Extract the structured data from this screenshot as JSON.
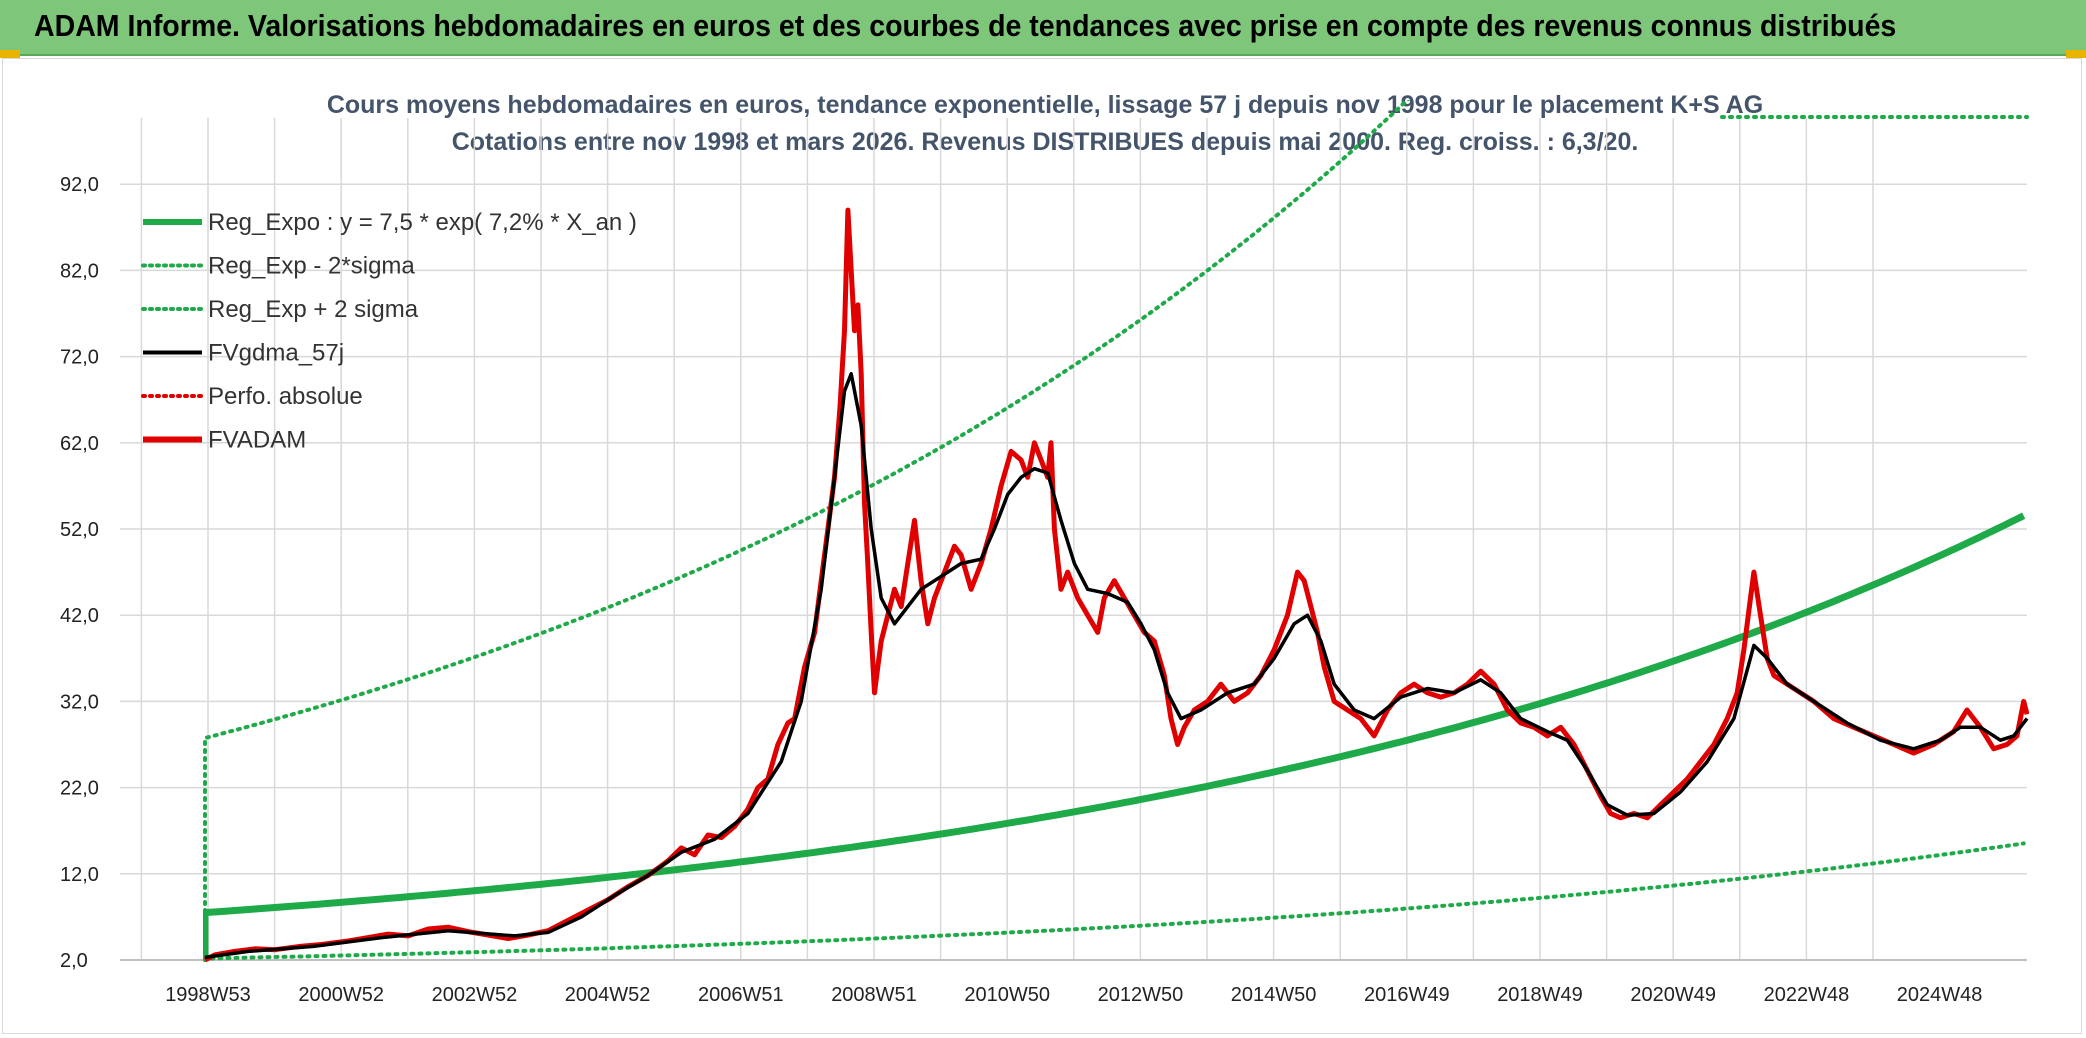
{
  "header": {
    "title": "ADAM Informe. Valorisations hebdomadaires en euros et des courbes de tendances avec prise en compte des revenus connus distribués"
  },
  "chart_data": {
    "type": "line",
    "title": "Cours moyens hebdomadaires en euros, tendance exponentielle, lissage 57 j depuis nov 1998 pour le placement K+S AG",
    "subtitle": "Cotations entre nov 1998 et mars 2026. Revenus DISTRIBUES depuis mai 2000. Reg. croiss. : 6,3/20.",
    "xlabel": "",
    "ylabel": "",
    "x_range_years": [
      1998.85,
      2026.2
    ],
    "ylim": [
      2,
      98
    ],
    "yticks": [
      "2,0",
      "12,0",
      "22,0",
      "32,0",
      "42,0",
      "52,0",
      "62,0",
      "72,0",
      "82,0",
      "92,0"
    ],
    "xticks": [
      "1998W53",
      "2000W52",
      "2002W52",
      "2004W52",
      "2006W51",
      "2008W51",
      "2010W50",
      "2012W50",
      "2014W50",
      "2016W49",
      "2018W49",
      "2020W49",
      "2022W48",
      "2024W48"
    ],
    "grid": true,
    "legend_position": "top-left",
    "legend": [
      {
        "label": "Reg_Expo : y = 7,5 * exp( 7,2% *  X_an )",
        "color": "#1faa4a",
        "style": "solid-thick"
      },
      {
        "label": "Reg_Exp - 2*sigma",
        "color": "#1faa4a",
        "style": "dotted"
      },
      {
        "label": "Reg_Exp + 2 sigma",
        "color": "#1faa4a",
        "style": "dotted"
      },
      {
        "label": "FVgdma_57j",
        "color": "#000000",
        "style": "solid"
      },
      {
        "label": "Perfo. absolue",
        "color": "#e00000",
        "style": "dotted"
      },
      {
        "label": "FVADAM",
        "color": "#e00000",
        "style": "solid-thick"
      }
    ],
    "regression": {
      "a": 7.5,
      "rate": 0.072,
      "t0": 1998.85,
      "t_end": 2026.2,
      "lower_factor": 0.29,
      "upper_factor": 3.7,
      "lower_start": 2.0,
      "upper_start": 27.5
    },
    "series": [
      {
        "name": "FVADAM",
        "color": "#e00000",
        "points": [
          [
            1998.85,
            2.0
          ],
          [
            1999.0,
            2.6
          ],
          [
            1999.3,
            3.0
          ],
          [
            1999.6,
            3.3
          ],
          [
            1999.9,
            3.2
          ],
          [
            2000.3,
            3.6
          ],
          [
            2000.6,
            3.8
          ],
          [
            2001.0,
            4.2
          ],
          [
            2001.3,
            4.6
          ],
          [
            2001.6,
            5.0
          ],
          [
            2001.9,
            4.8
          ],
          [
            2002.2,
            5.6
          ],
          [
            2002.5,
            5.8
          ],
          [
            2002.8,
            5.3
          ],
          [
            2003.1,
            4.9
          ],
          [
            2003.4,
            4.5
          ],
          [
            2003.7,
            4.9
          ],
          [
            2004.0,
            5.4
          ],
          [
            2004.3,
            6.6
          ],
          [
            2004.6,
            7.8
          ],
          [
            2004.9,
            9.0
          ],
          [
            2005.2,
            10.5
          ],
          [
            2005.5,
            11.8
          ],
          [
            2005.8,
            13.5
          ],
          [
            2006.0,
            15.0
          ],
          [
            2006.2,
            14.2
          ],
          [
            2006.4,
            16.5
          ],
          [
            2006.6,
            16.2
          ],
          [
            2006.8,
            17.5
          ],
          [
            2007.0,
            19.5
          ],
          [
            2007.15,
            22.0
          ],
          [
            2007.3,
            23.0
          ],
          [
            2007.45,
            27.0
          ],
          [
            2007.6,
            29.5
          ],
          [
            2007.7,
            30.0
          ],
          [
            2007.85,
            36.0
          ],
          [
            2008.0,
            40.0
          ],
          [
            2008.1,
            46.0
          ],
          [
            2008.2,
            52.0
          ],
          [
            2008.3,
            58.0
          ],
          [
            2008.38,
            66.0
          ],
          [
            2008.45,
            75.0
          ],
          [
            2008.5,
            89.0
          ],
          [
            2008.55,
            82.0
          ],
          [
            2008.6,
            75.0
          ],
          [
            2008.65,
            78.0
          ],
          [
            2008.7,
            70.0
          ],
          [
            2008.75,
            55.0
          ],
          [
            2008.8,
            48.0
          ],
          [
            2008.85,
            40.0
          ],
          [
            2008.9,
            33.0
          ],
          [
            2008.95,
            36.0
          ],
          [
            2009.0,
            39.0
          ],
          [
            2009.1,
            42.0
          ],
          [
            2009.2,
            45.0
          ],
          [
            2009.3,
            43.0
          ],
          [
            2009.4,
            48.0
          ],
          [
            2009.5,
            53.0
          ],
          [
            2009.6,
            46.0
          ],
          [
            2009.7,
            41.0
          ],
          [
            2009.8,
            44.0
          ],
          [
            2009.95,
            47.0
          ],
          [
            2010.1,
            50.0
          ],
          [
            2010.2,
            49.0
          ],
          [
            2010.35,
            45.0
          ],
          [
            2010.5,
            48.0
          ],
          [
            2010.65,
            52.0
          ],
          [
            2010.8,
            57.0
          ],
          [
            2010.95,
            61.0
          ],
          [
            2011.1,
            60.0
          ],
          [
            2011.2,
            58.0
          ],
          [
            2011.3,
            62.0
          ],
          [
            2011.4,
            60.0
          ],
          [
            2011.5,
            58.0
          ],
          [
            2011.55,
            62.0
          ],
          [
            2011.6,
            52.0
          ],
          [
            2011.7,
            45.0
          ],
          [
            2011.8,
            47.0
          ],
          [
            2011.95,
            44.0
          ],
          [
            2012.1,
            42.0
          ],
          [
            2012.25,
            40.0
          ],
          [
            2012.35,
            44.0
          ],
          [
            2012.5,
            46.0
          ],
          [
            2012.65,
            44.0
          ],
          [
            2012.8,
            42.0
          ],
          [
            2012.95,
            40.0
          ],
          [
            2013.1,
            39.0
          ],
          [
            2013.25,
            35.0
          ],
          [
            2013.35,
            30.0
          ],
          [
            2013.45,
            27.0
          ],
          [
            2013.55,
            29.0
          ],
          [
            2013.7,
            31.0
          ],
          [
            2013.9,
            32.0
          ],
          [
            2014.1,
            34.0
          ],
          [
            2014.3,
            32.0
          ],
          [
            2014.5,
            33.0
          ],
          [
            2014.7,
            35.0
          ],
          [
            2014.9,
            38.0
          ],
          [
            2015.1,
            42.0
          ],
          [
            2015.25,
            47.0
          ],
          [
            2015.35,
            46.0
          ],
          [
            2015.45,
            43.0
          ],
          [
            2015.55,
            40.0
          ],
          [
            2015.65,
            36.0
          ],
          [
            2015.8,
            32.0
          ],
          [
            2016.0,
            31.0
          ],
          [
            2016.2,
            30.0
          ],
          [
            2016.4,
            28.0
          ],
          [
            2016.6,
            31.0
          ],
          [
            2016.8,
            33.0
          ],
          [
            2017.0,
            34.0
          ],
          [
            2017.2,
            33.0
          ],
          [
            2017.4,
            32.5
          ],
          [
            2017.6,
            33.0
          ],
          [
            2017.8,
            34.0
          ],
          [
            2018.0,
            35.5
          ],
          [
            2018.2,
            34.0
          ],
          [
            2018.4,
            31.0
          ],
          [
            2018.6,
            29.5
          ],
          [
            2018.8,
            29.0
          ],
          [
            2019.0,
            28.0
          ],
          [
            2019.2,
            29.0
          ],
          [
            2019.4,
            27.0
          ],
          [
            2019.6,
            24.0
          ],
          [
            2019.8,
            21.0
          ],
          [
            2019.95,
            19.0
          ],
          [
            2020.1,
            18.5
          ],
          [
            2020.3,
            19.0
          ],
          [
            2020.5,
            18.5
          ],
          [
            2020.7,
            20.0
          ],
          [
            2020.9,
            21.5
          ],
          [
            2021.1,
            23.0
          ],
          [
            2021.3,
            25.0
          ],
          [
            2021.5,
            27.0
          ],
          [
            2021.7,
            30.0
          ],
          [
            2021.85,
            33.0
          ],
          [
            2021.95,
            38.0
          ],
          [
            2022.05,
            44.0
          ],
          [
            2022.1,
            47.0
          ],
          [
            2022.2,
            42.0
          ],
          [
            2022.3,
            37.0
          ],
          [
            2022.4,
            35.0
          ],
          [
            2022.6,
            34.0
          ],
          [
            2022.8,
            33.0
          ],
          [
            2023.0,
            32.0
          ],
          [
            2023.3,
            30.0
          ],
          [
            2023.6,
            29.0
          ],
          [
            2023.9,
            28.0
          ],
          [
            2024.2,
            27.0
          ],
          [
            2024.5,
            26.0
          ],
          [
            2024.8,
            27.0
          ],
          [
            2025.1,
            28.5
          ],
          [
            2025.3,
            31.0
          ],
          [
            2025.5,
            29.0
          ],
          [
            2025.7,
            26.5
          ],
          [
            2025.9,
            27.0
          ],
          [
            2026.05,
            28.0
          ],
          [
            2026.15,
            32.0
          ],
          [
            2026.2,
            30.5
          ]
        ]
      },
      {
        "name": "FVgdma_57j",
        "color": "#000000",
        "points": [
          [
            1998.85,
            2.3
          ],
          [
            1999.5,
            3.0
          ],
          [
            2000.5,
            3.6
          ],
          [
            2001.5,
            4.6
          ],
          [
            2002.5,
            5.4
          ],
          [
            2003.5,
            4.8
          ],
          [
            2004.0,
            5.2
          ],
          [
            2004.5,
            7.0
          ],
          [
            2005.0,
            9.5
          ],
          [
            2005.5,
            11.8
          ],
          [
            2006.0,
            14.5
          ],
          [
            2006.5,
            16.0
          ],
          [
            2007.0,
            19.0
          ],
          [
            2007.5,
            25.0
          ],
          [
            2007.8,
            32.0
          ],
          [
            2008.1,
            45.0
          ],
          [
            2008.3,
            58.0
          ],
          [
            2008.45,
            68.0
          ],
          [
            2008.55,
            70.0
          ],
          [
            2008.7,
            64.0
          ],
          [
            2008.85,
            52.0
          ],
          [
            2009.0,
            44.0
          ],
          [
            2009.2,
            41.0
          ],
          [
            2009.4,
            43.0
          ],
          [
            2009.6,
            45.0
          ],
          [
            2009.8,
            46.0
          ],
          [
            2010.0,
            47.0
          ],
          [
            2010.2,
            48.0
          ],
          [
            2010.5,
            48.5
          ],
          [
            2010.7,
            52.0
          ],
          [
            2010.9,
            56.0
          ],
          [
            2011.1,
            58.0
          ],
          [
            2011.3,
            59.0
          ],
          [
            2011.5,
            58.5
          ],
          [
            2011.7,
            53.0
          ],
          [
            2011.9,
            48.0
          ],
          [
            2012.1,
            45.0
          ],
          [
            2012.4,
            44.5
          ],
          [
            2012.7,
            43.5
          ],
          [
            2012.9,
            41.0
          ],
          [
            2013.1,
            38.0
          ],
          [
            2013.3,
            33.0
          ],
          [
            2013.5,
            30.0
          ],
          [
            2013.8,
            31.0
          ],
          [
            2014.2,
            33.0
          ],
          [
            2014.6,
            34.0
          ],
          [
            2014.9,
            37.0
          ],
          [
            2015.2,
            41.0
          ],
          [
            2015.4,
            42.0
          ],
          [
            2015.6,
            39.0
          ],
          [
            2015.8,
            34.0
          ],
          [
            2016.1,
            31.0
          ],
          [
            2016.4,
            30.0
          ],
          [
            2016.8,
            32.5
          ],
          [
            2017.2,
            33.5
          ],
          [
            2017.6,
            33.0
          ],
          [
            2018.0,
            34.5
          ],
          [
            2018.3,
            33.0
          ],
          [
            2018.6,
            30.0
          ],
          [
            2019.0,
            28.5
          ],
          [
            2019.3,
            27.5
          ],
          [
            2019.6,
            24.0
          ],
          [
            2019.9,
            20.0
          ],
          [
            2020.2,
            18.8
          ],
          [
            2020.6,
            19.0
          ],
          [
            2021.0,
            21.5
          ],
          [
            2021.4,
            25.0
          ],
          [
            2021.8,
            30.0
          ],
          [
            2022.1,
            38.5
          ],
          [
            2022.3,
            37.0
          ],
          [
            2022.6,
            34.0
          ],
          [
            2023.0,
            32.0
          ],
          [
            2023.5,
            29.5
          ],
          [
            2024.0,
            27.5
          ],
          [
            2024.5,
            26.5
          ],
          [
            2024.9,
            27.5
          ],
          [
            2025.2,
            29.0
          ],
          [
            2025.5,
            29.0
          ],
          [
            2025.8,
            27.5
          ],
          [
            2026.0,
            28.0
          ],
          [
            2026.2,
            30.0
          ]
        ]
      }
    ]
  }
}
